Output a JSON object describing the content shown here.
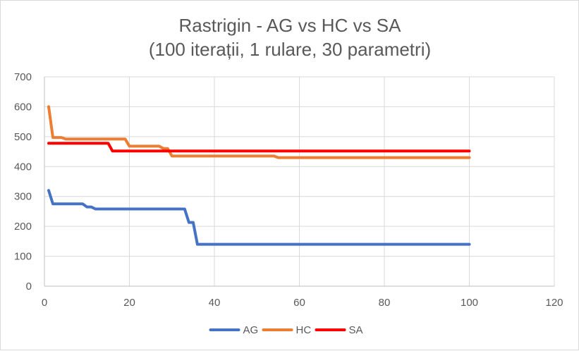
{
  "chart_data": {
    "type": "line",
    "title": "Rastrigin - AG vs HC vs SA",
    "subtitle": "(100 iterații, 1 rulare, 30 parametri)",
    "xlim": [
      0,
      120
    ],
    "ylim": [
      0,
      700
    ],
    "x_ticks": [
      0,
      20,
      40,
      60,
      80,
      100,
      120
    ],
    "y_ticks": [
      0,
      100,
      200,
      300,
      400,
      500,
      600,
      700
    ],
    "grid": true,
    "legend_position": "bottom",
    "series": [
      {
        "name": "AG",
        "color": "#4472C4",
        "points": [
          [
            1,
            320
          ],
          [
            2,
            275
          ],
          [
            9,
            275
          ],
          [
            10,
            265
          ],
          [
            11,
            265
          ],
          [
            12,
            258
          ],
          [
            33,
            258
          ],
          [
            34,
            213
          ],
          [
            35,
            213
          ],
          [
            36,
            140
          ],
          [
            100,
            140
          ]
        ]
      },
      {
        "name": "HC",
        "color": "#ED7D31",
        "points": [
          [
            1,
            600
          ],
          [
            2,
            497
          ],
          [
            4,
            497
          ],
          [
            5,
            492
          ],
          [
            19,
            492
          ],
          [
            20,
            468
          ],
          [
            27,
            468
          ],
          [
            28,
            460
          ],
          [
            29,
            460
          ],
          [
            30,
            435
          ],
          [
            54,
            435
          ],
          [
            55,
            430
          ],
          [
            100,
            430
          ]
        ]
      },
      {
        "name": "SA",
        "color": "#FF0000",
        "points": [
          [
            1,
            478
          ],
          [
            15,
            478
          ],
          [
            16,
            452
          ],
          [
            100,
            452
          ]
        ]
      }
    ]
  }
}
